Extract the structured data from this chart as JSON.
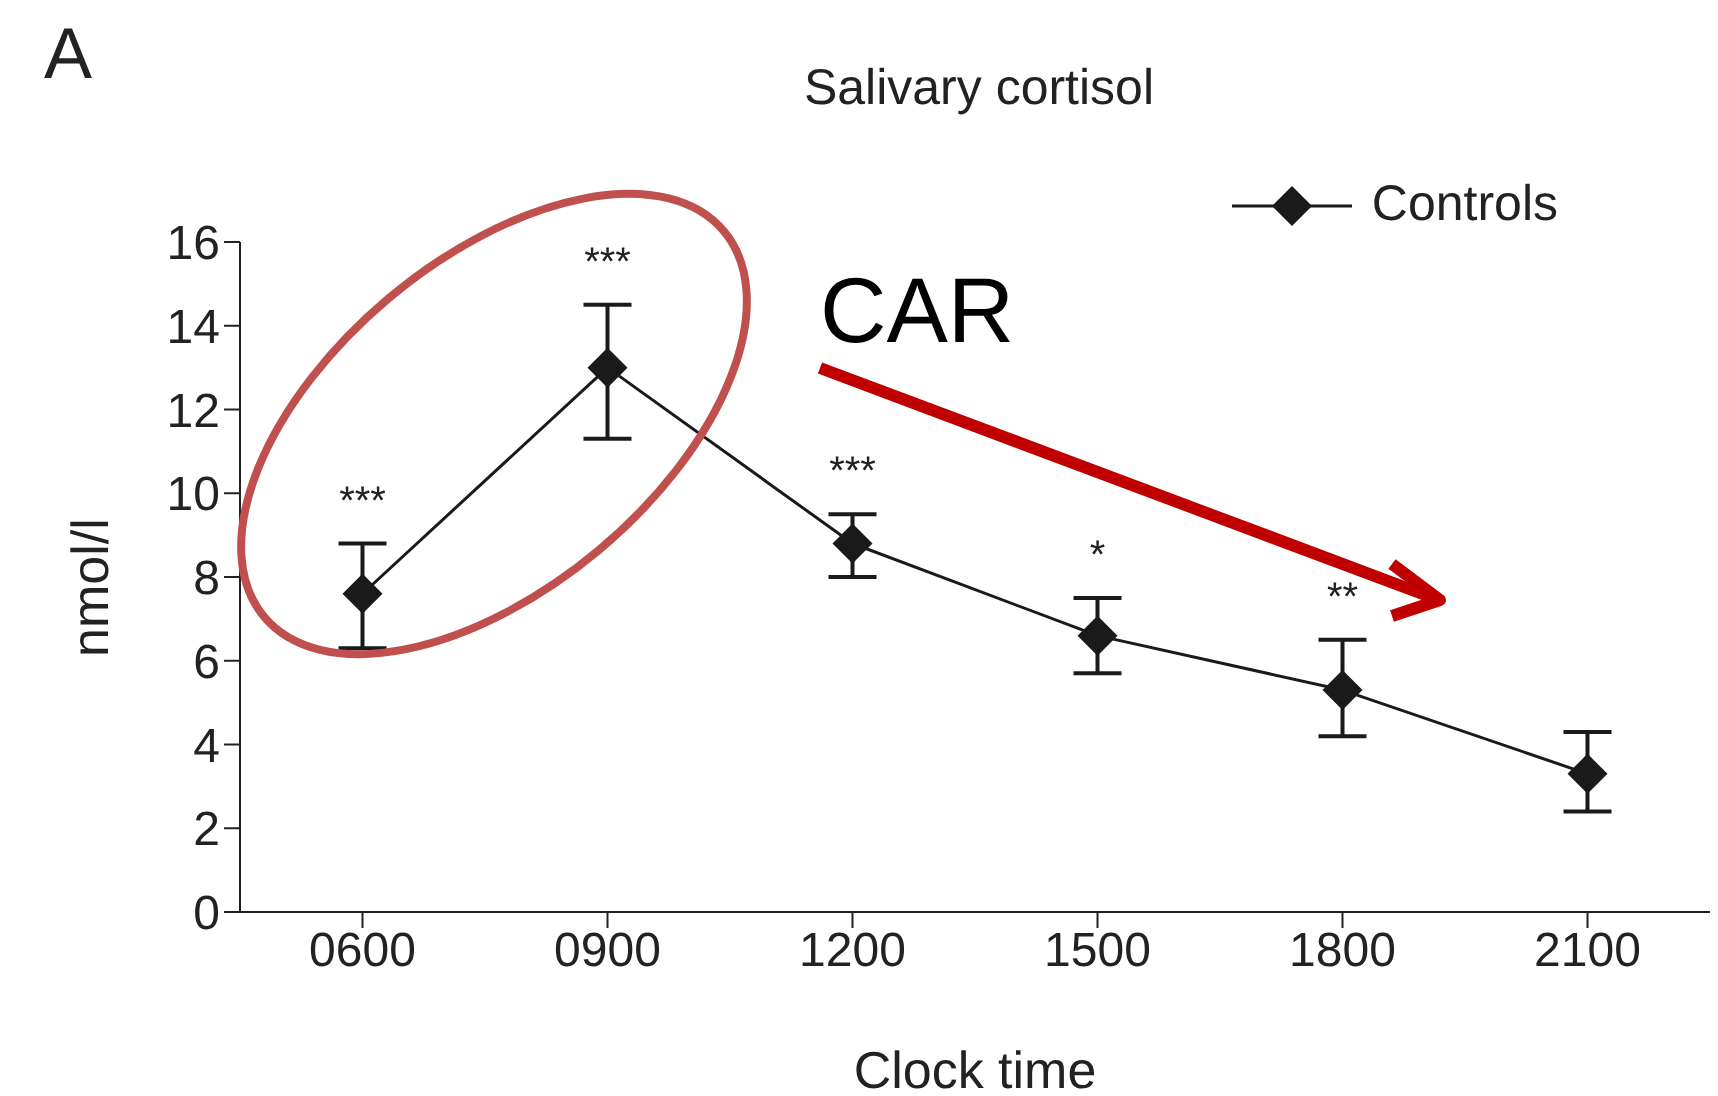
{
  "chart_data": {
    "type": "line",
    "title": "Salivary cortisol",
    "xlabel": "Clock time",
    "ylabel": "nmol/l",
    "categories": [
      "0600",
      "0900",
      "1200",
      "1500",
      "1800",
      "2100"
    ],
    "series": [
      {
        "name": "Controls",
        "color": "#1a1a1a",
        "values": [
          7.6,
          13.0,
          8.8,
          6.6,
          5.3,
          3.3
        ],
        "errors": [
          [
            6.3,
            8.8
          ],
          [
            11.3,
            14.5
          ],
          [
            8.0,
            9.5
          ],
          [
            5.7,
            7.5
          ],
          [
            4.2,
            6.5
          ],
          [
            2.4,
            4.3
          ]
        ]
      }
    ],
    "ylim": [
      0,
      16
    ],
    "yticks": [
      0,
      2,
      4,
      6,
      8,
      10,
      12,
      14,
      16
    ],
    "grid": false,
    "legend": "top right",
    "marker": "diamond",
    "line_style": "solid",
    "annotations": [
      "A",
      "CAR",
      "***",
      "***",
      "***",
      "*",
      "**"
    ]
  }
}
